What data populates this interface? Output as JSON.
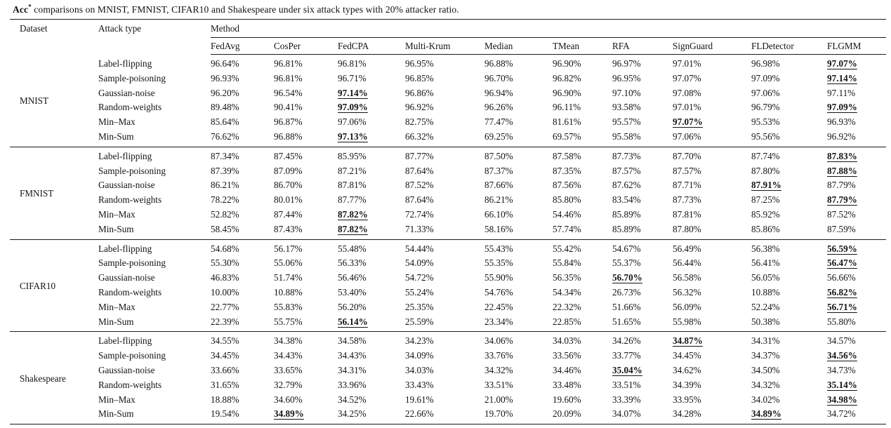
{
  "caption": {
    "prefix": "Acc",
    "sup": "*",
    "rest": " comparisons on MNIST, FMNIST, CIFAR10 and Shakespeare under six attack types with 20% attacker ratio."
  },
  "table": {
    "col_dataset": "Dataset",
    "col_attack": "Attack type",
    "col_method_group": "Method",
    "methods": [
      "FedAvg",
      "CosPer",
      "FedCPA",
      "Multi-Krum",
      "Median",
      "TMean",
      "RFA",
      "SignGuard",
      "FLDetector",
      "FLGMM"
    ],
    "blocks": [
      {
        "dataset": "MNIST",
        "rows": [
          {
            "attack": "Label-flipping",
            "values": [
              "96.64%",
              "96.81%",
              "96.81%",
              "96.95%",
              "96.88%",
              "96.90%",
              "96.97%",
              "97.01%",
              "96.98%",
              "97.07%"
            ],
            "best": [
              9
            ]
          },
          {
            "attack": "Sample-poisoning",
            "values": [
              "96.93%",
              "96.81%",
              "96.71%",
              "96.85%",
              "96.70%",
              "96.82%",
              "96.95%",
              "97.07%",
              "97.09%",
              "97.14%"
            ],
            "best": [
              9
            ]
          },
          {
            "attack": "Gaussian-noise",
            "values": [
              "96.20%",
              "96.54%",
              "97.14%",
              "96.86%",
              "96.94%",
              "96.90%",
              "97.10%",
              "97.08%",
              "97.06%",
              "97.11%"
            ],
            "best": [
              2
            ]
          },
          {
            "attack": "Random-weights",
            "values": [
              "89.48%",
              "90.41%",
              "97.09%",
              "96.92%",
              "96.26%",
              "96.11%",
              "93.58%",
              "97.01%",
              "96.79%",
              "97.09%"
            ],
            "best": [
              2,
              9
            ]
          },
          {
            "attack": "Min–Max",
            "values": [
              "85.64%",
              "96.87%",
              "97.06%",
              "82.75%",
              "77.47%",
              "81.61%",
              "95.57%",
              "97.07%",
              "95.53%",
              "96.93%"
            ],
            "best": [
              7
            ]
          },
          {
            "attack": "Min-Sum",
            "values": [
              "76.62%",
              "96.88%",
              "97.13%",
              "66.32%",
              "69.25%",
              "69.57%",
              "95.58%",
              "97.06%",
              "95.56%",
              "96.92%"
            ],
            "best": [
              2
            ]
          }
        ]
      },
      {
        "dataset": "FMNIST",
        "rows": [
          {
            "attack": "Label-flipping",
            "values": [
              "87.34%",
              "87.45%",
              "85.95%",
              "87.77%",
              "87.50%",
              "87.58%",
              "87.73%",
              "87.70%",
              "87.74%",
              "87.83%"
            ],
            "best": [
              9
            ]
          },
          {
            "attack": "Sample-poisoning",
            "values": [
              "87.39%",
              "87.09%",
              "87.21%",
              "87.64%",
              "87.37%",
              "87.35%",
              "87.57%",
              "87.57%",
              "87.80%",
              "87.88%"
            ],
            "best": [
              9
            ]
          },
          {
            "attack": "Gaussian-noise",
            "values": [
              "86.21%",
              "86.70%",
              "87.81%",
              "87.52%",
              "87.66%",
              "87.56%",
              "87.62%",
              "87.71%",
              "87.91%",
              "87.79%"
            ],
            "best": [
              8
            ]
          },
          {
            "attack": "Random-weights",
            "values": [
              "78.22%",
              "80.01%",
              "87.77%",
              "87.64%",
              "86.21%",
              "85.80%",
              "83.54%",
              "87.73%",
              "87.25%",
              "87.79%"
            ],
            "best": [
              9
            ]
          },
          {
            "attack": "Min–Max",
            "values": [
              "52.82%",
              "87.44%",
              "87.82%",
              "72.74%",
              "66.10%",
              "54.46%",
              "85.89%",
              "87.81%",
              "85.92%",
              "87.52%"
            ],
            "best": [
              2
            ]
          },
          {
            "attack": "Min-Sum",
            "values": [
              "58.45%",
              "87.43%",
              "87.82%",
              "71.33%",
              "58.16%",
              "57.74%",
              "85.89%",
              "87.80%",
              "85.86%",
              "87.59%"
            ],
            "best": [
              2
            ]
          }
        ]
      },
      {
        "dataset": "CIFAR10",
        "rows": [
          {
            "attack": "Label-flipping",
            "values": [
              "54.68%",
              "56.17%",
              "55.48%",
              "54.44%",
              "55.43%",
              "55.42%",
              "54.67%",
              "56.49%",
              "56.38%",
              "56.59%"
            ],
            "best": [
              9
            ]
          },
          {
            "attack": "Sample-poisoning",
            "values": [
              "55.30%",
              "55.06%",
              "56.33%",
              "54.09%",
              "55.35%",
              "55.84%",
              "55.37%",
              "56.44%",
              "56.41%",
              "56.47%"
            ],
            "best": [
              9
            ]
          },
          {
            "attack": "Gaussian-noise",
            "values": [
              "46.83%",
              "51.74%",
              "56.46%",
              "54.72%",
              "55.90%",
              "56.35%",
              "56.70%",
              "56.58%",
              "56.05%",
              "56.66%"
            ],
            "best": [
              6
            ]
          },
          {
            "attack": "Random-weights",
            "values": [
              "10.00%",
              "10.88%",
              "53.40%",
              "55.24%",
              "54.76%",
              "54.34%",
              "26.73%",
              "56.32%",
              "10.88%",
              "56.82%"
            ],
            "best": [
              9
            ]
          },
          {
            "attack": "Min–Max",
            "values": [
              "22.77%",
              "55.83%",
              "56.20%",
              "25.35%",
              "22.45%",
              "22.32%",
              "51.66%",
              "56.09%",
              "52.24%",
              "56.71%"
            ],
            "best": [
              9
            ]
          },
          {
            "attack": "Min-Sum",
            "values": [
              "22.39%",
              "55.75%",
              "56.14%",
              "25.59%",
              "23.34%",
              "22.85%",
              "51.65%",
              "55.98%",
              "50.38%",
              "55.80%"
            ],
            "best": [
              2
            ]
          }
        ]
      },
      {
        "dataset": "Shakespeare",
        "rows": [
          {
            "attack": "Label-flipping",
            "values": [
              "34.55%",
              "34.38%",
              "34.58%",
              "34.23%",
              "34.06%",
              "34.03%",
              "34.26%",
              "34.87%",
              "34.31%",
              "34.57%"
            ],
            "best": [
              7
            ]
          },
          {
            "attack": "Sample-poisoning",
            "values": [
              "34.45%",
              "34.43%",
              "34.43%",
              "34.09%",
              "33.76%",
              "33.56%",
              "33.77%",
              "34.45%",
              "34.37%",
              "34.56%"
            ],
            "best": [
              9
            ]
          },
          {
            "attack": "Gaussian-noise",
            "values": [
              "33.66%",
              "33.65%",
              "34.31%",
              "34.03%",
              "34.32%",
              "34.46%",
              "35.04%",
              "34.62%",
              "34.50%",
              "34.73%"
            ],
            "best": [
              6
            ]
          },
          {
            "attack": "Random-weights",
            "values": [
              "31.65%",
              "32.79%",
              "33.96%",
              "33.43%",
              "33.51%",
              "33.48%",
              "33.51%",
              "34.39%",
              "34.32%",
              "35.14%"
            ],
            "best": [
              9
            ]
          },
          {
            "attack": "Min–Max",
            "values": [
              "18.88%",
              "34.60%",
              "34.52%",
              "19.61%",
              "21.00%",
              "19.60%",
              "33.39%",
              "33.95%",
              "34.02%",
              "34.98%"
            ],
            "best": [
              9
            ]
          },
          {
            "attack": "Min-Sum",
            "values": [
              "19.54%",
              "34.89%",
              "34.25%",
              "22.66%",
              "19.70%",
              "20.09%",
              "34.07%",
              "34.28%",
              "34.89%",
              "34.72%"
            ],
            "best": [
              1,
              8
            ]
          }
        ]
      }
    ]
  },
  "colors": {
    "text": "#141414",
    "rule": "#1b1b1b",
    "background": "#ffffff"
  }
}
